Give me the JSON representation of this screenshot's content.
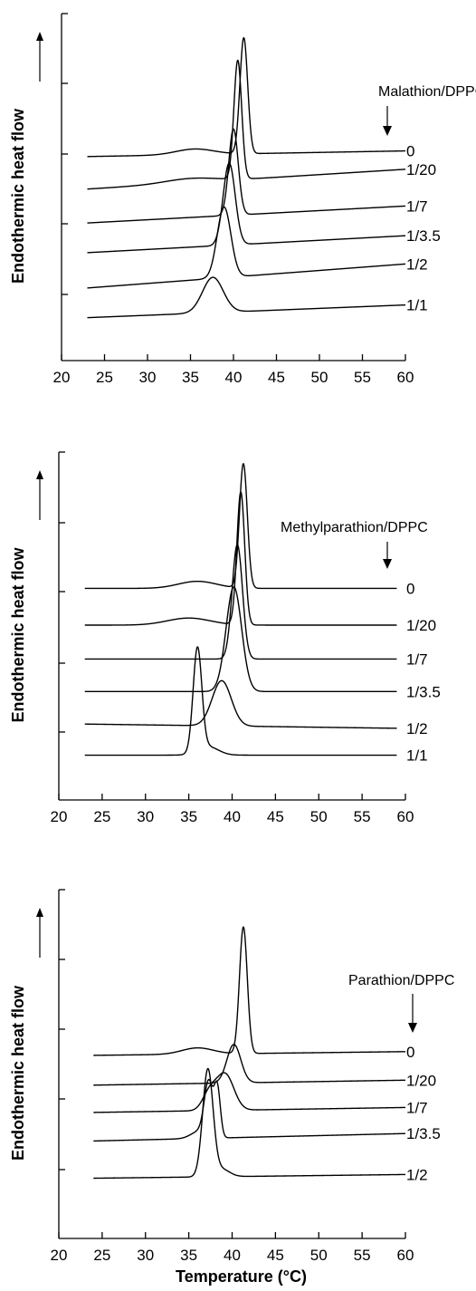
{
  "chart_data": [
    {
      "type": "line",
      "ylabel": "Endothermic heat flow",
      "legend_title": "Malathion/DPPC",
      "xlim": [
        20,
        60
      ],
      "x_ticks": [
        "20",
        "25",
        "30",
        "35",
        "40",
        "45",
        "50",
        "55",
        "60"
      ],
      "x_range": [
        23,
        60
      ],
      "series": [
        {
          "name": "0",
          "baseline": 12.0,
          "drift": 0.4,
          "peaks": [
            {
              "x": 41.2,
              "h": 8.2,
              "w": 0.45
            },
            {
              "x": 35.5,
              "h": 0.4,
              "w": 2.2
            }
          ]
        },
        {
          "name": "1/20",
          "baseline": 9.7,
          "drift": 1.4,
          "peaks": [
            {
              "x": 40.5,
              "h": 8.4,
              "w": 0.45
            },
            {
              "x": 35.0,
              "h": 0.3,
              "w": 3.0
            }
          ]
        },
        {
          "name": "1/7",
          "baseline": 7.3,
          "drift": 1.2,
          "peaks": [
            {
              "x": 40.0,
              "h": 6.1,
              "w": 0.55
            }
          ]
        },
        {
          "name": "1/3.5",
          "baseline": 5.2,
          "drift": 1.2,
          "peaks": [
            {
              "x": 39.5,
              "h": 5.8,
              "w": 0.7
            }
          ]
        },
        {
          "name": "1/2",
          "baseline": 2.7,
          "drift": 1.7,
          "peaks": [
            {
              "x": 38.9,
              "h": 5.0,
              "w": 0.8
            }
          ]
        },
        {
          "name": "1/1",
          "baseline": 0.6,
          "drift": 0.9,
          "peaks": [
            {
              "x": 37.6,
              "h": 2.5,
              "w": 1.2
            }
          ]
        }
      ]
    },
    {
      "type": "line",
      "ylabel": "Endothermic heat  flow",
      "legend_title": "Methylparathion/DPPC",
      "xlim": [
        20,
        60
      ],
      "x_ticks": [
        "20",
        "25",
        "30",
        "35",
        "40",
        "45",
        "50",
        "55",
        "60"
      ],
      "x_range": [
        23,
        59
      ],
      "series": [
        {
          "name": "0",
          "baseline": 12.6,
          "drift": 0.0,
          "peaks": [
            {
              "x": 41.3,
              "h": 8.8,
              "w": 0.45
            },
            {
              "x": 36.0,
              "h": 0.5,
              "w": 2.2
            }
          ]
        },
        {
          "name": "1/20",
          "baseline": 10.0,
          "drift": 0.0,
          "peaks": [
            {
              "x": 41.0,
              "h": 9.4,
              "w": 0.45
            },
            {
              "x": 35.0,
              "h": 0.5,
              "w": 2.5
            }
          ]
        },
        {
          "name": "1/7",
          "baseline": 7.6,
          "drift": 0.0,
          "peaks": [
            {
              "x": 40.6,
              "h": 8.1,
              "w": 0.6
            }
          ]
        },
        {
          "name": "1/3.5",
          "baseline": 5.3,
          "drift": 0.0,
          "peaks": [
            {
              "x": 40.2,
              "h": 7.4,
              "w": 0.9
            }
          ]
        },
        {
          "name": "1/2",
          "baseline": 3.0,
          "drift": -0.3,
          "peaks": [
            {
              "x": 38.8,
              "h": 3.2,
              "w": 1.1
            }
          ]
        },
        {
          "name": "1/1",
          "baseline": 0.8,
          "drift": 0.0,
          "peaks": [
            {
              "x": 36.0,
              "h": 7.3,
              "w": 0.5
            },
            {
              "x": 37.2,
              "h": 0.6,
              "w": 1.2
            }
          ]
        }
      ]
    },
    {
      "type": "line",
      "ylabel": "Endothermic heat flow",
      "xlabel": "Temperature (°C)",
      "legend_title": "Parathion/DPPC",
      "xlim": [
        20,
        60
      ],
      "x_ticks": [
        "20",
        "25",
        "30",
        "35",
        "40",
        "45",
        "50",
        "55",
        "60"
      ],
      "x_range": [
        24,
        60
      ],
      "series": [
        {
          "name": "0",
          "baseline": 10.3,
          "drift": 0.3,
          "peaks": [
            {
              "x": 41.3,
              "h": 10.2,
              "w": 0.45
            },
            {
              "x": 36.0,
              "h": 0.5,
              "w": 1.8
            }
          ]
        },
        {
          "name": "1/20",
          "baseline": 7.9,
          "drift": 0.4,
          "peaks": [
            {
              "x": 40.2,
              "h": 3.1,
              "w": 0.8
            }
          ]
        },
        {
          "name": "1/7",
          "baseline": 5.7,
          "drift": 0.4,
          "peaks": [
            {
              "x": 39.2,
              "h": 2.9,
              "w": 1.0
            },
            {
              "x": 37.4,
              "h": 1.4,
              "w": 0.8
            }
          ]
        },
        {
          "name": "1/3.5",
          "baseline": 3.4,
          "drift": 0.6,
          "peaks": [
            {
              "x": 37.3,
              "h": 4.3,
              "w": 0.5
            },
            {
              "x": 38.3,
              "h": 3.8,
              "w": 0.35
            },
            {
              "x": 36.3,
              "h": 0.6,
              "w": 1.0
            }
          ]
        },
        {
          "name": "1/2",
          "baseline": 0.4,
          "drift": 0.3,
          "peaks": [
            {
              "x": 37.2,
              "h": 8.6,
              "w": 0.6
            },
            {
              "x": 38.8,
              "h": 0.6,
              "w": 0.9
            }
          ]
        }
      ]
    }
  ]
}
